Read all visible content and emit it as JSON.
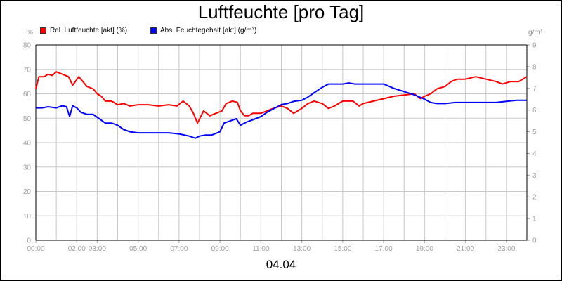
{
  "chart_data": {
    "type": "line",
    "title": "Luftfeuchte [pro Tag]",
    "xlabel": "04.04",
    "x_ticks": [
      "00:00",
      "02:00",
      "03:00",
      "05:00",
      "07:00",
      "09:00",
      "11:00",
      "13:00",
      "15:00",
      "17:00",
      "19:00",
      "21:00",
      "23:00"
    ],
    "x_tick_hours": [
      0,
      2,
      3,
      5,
      7,
      9,
      11,
      13,
      15,
      17,
      19,
      21,
      23
    ],
    "xlim": [
      0,
      24
    ],
    "y_left": {
      "unit": "%",
      "lim": [
        0,
        80
      ],
      "ticks": [
        "0",
        "10",
        "20",
        "30",
        "40",
        "50",
        "60",
        "70",
        "80"
      ]
    },
    "y_right": {
      "unit": "g/m³",
      "lim": [
        0,
        9
      ],
      "ticks": [
        "0",
        "1",
        "2",
        "3",
        "4",
        "5",
        "6",
        "7",
        "8",
        "9"
      ]
    },
    "grid": true,
    "legend_position": "top-left",
    "series": [
      {
        "name": "Rel. Luftfeuchte [akt] (%)",
        "color": "#ff0000",
        "axis": "left",
        "points": [
          [
            0.0,
            62
          ],
          [
            0.15,
            67
          ],
          [
            0.4,
            67
          ],
          [
            0.6,
            68
          ],
          [
            0.8,
            67.5
          ],
          [
            1.0,
            69
          ],
          [
            1.3,
            68
          ],
          [
            1.6,
            67
          ],
          [
            1.8,
            63.5
          ],
          [
            2.1,
            67
          ],
          [
            2.3,
            65
          ],
          [
            2.5,
            63
          ],
          [
            2.8,
            62
          ],
          [
            3.0,
            60
          ],
          [
            3.2,
            59
          ],
          [
            3.4,
            57
          ],
          [
            3.7,
            57
          ],
          [
            4.0,
            55.5
          ],
          [
            4.3,
            56
          ],
          [
            4.6,
            55
          ],
          [
            5.0,
            55.5
          ],
          [
            5.5,
            55.5
          ],
          [
            6.0,
            55
          ],
          [
            6.5,
            55.5
          ],
          [
            6.9,
            55
          ],
          [
            7.2,
            57
          ],
          [
            7.5,
            55
          ],
          [
            7.7,
            52
          ],
          [
            7.9,
            48
          ],
          [
            8.2,
            53
          ],
          [
            8.5,
            51
          ],
          [
            8.8,
            52
          ],
          [
            9.1,
            53
          ],
          [
            9.3,
            56
          ],
          [
            9.6,
            57
          ],
          [
            9.85,
            56.5
          ],
          [
            10.0,
            53
          ],
          [
            10.2,
            51
          ],
          [
            10.4,
            51
          ],
          [
            10.6,
            52
          ],
          [
            11.0,
            52
          ],
          [
            11.3,
            53
          ],
          [
            11.6,
            54
          ],
          [
            12.0,
            55
          ],
          [
            12.3,
            54
          ],
          [
            12.6,
            52
          ],
          [
            13.0,
            54
          ],
          [
            13.3,
            56
          ],
          [
            13.6,
            57
          ],
          [
            14.0,
            56
          ],
          [
            14.3,
            54
          ],
          [
            14.6,
            55
          ],
          [
            15.0,
            57
          ],
          [
            15.5,
            57
          ],
          [
            15.8,
            55
          ],
          [
            16.0,
            56
          ],
          [
            16.5,
            57
          ],
          [
            17.0,
            58
          ],
          [
            17.5,
            59
          ],
          [
            18.0,
            59.5
          ],
          [
            18.5,
            60
          ],
          [
            18.8,
            58
          ],
          [
            19.0,
            59
          ],
          [
            19.3,
            60
          ],
          [
            19.6,
            62
          ],
          [
            20.0,
            63
          ],
          [
            20.3,
            65
          ],
          [
            20.6,
            66
          ],
          [
            21.0,
            66
          ],
          [
            21.5,
            67
          ],
          [
            22.0,
            66
          ],
          [
            22.5,
            65
          ],
          [
            22.8,
            64
          ],
          [
            23.2,
            65
          ],
          [
            23.6,
            65
          ],
          [
            24.0,
            67
          ]
        ]
      },
      {
        "name": "Abs. Feuchtegehalt [akt] (g/m³)",
        "color": "#0000ff",
        "axis": "right",
        "points": [
          [
            0.0,
            6.1
          ],
          [
            0.3,
            6.1
          ],
          [
            0.6,
            6.15
          ],
          [
            1.0,
            6.1
          ],
          [
            1.3,
            6.2
          ],
          [
            1.5,
            6.15
          ],
          [
            1.65,
            5.7
          ],
          [
            1.8,
            6.2
          ],
          [
            2.0,
            6.1
          ],
          [
            2.2,
            5.9
          ],
          [
            2.5,
            5.8
          ],
          [
            2.8,
            5.8
          ],
          [
            3.1,
            5.6
          ],
          [
            3.4,
            5.4
          ],
          [
            3.7,
            5.4
          ],
          [
            4.0,
            5.3
          ],
          [
            4.3,
            5.1
          ],
          [
            4.6,
            5.0
          ],
          [
            5.0,
            4.95
          ],
          [
            5.5,
            4.95
          ],
          [
            6.0,
            4.95
          ],
          [
            6.5,
            4.95
          ],
          [
            7.0,
            4.9
          ],
          [
            7.5,
            4.8
          ],
          [
            7.8,
            4.7
          ],
          [
            8.0,
            4.8
          ],
          [
            8.3,
            4.85
          ],
          [
            8.6,
            4.85
          ],
          [
            9.0,
            5.0
          ],
          [
            9.2,
            5.4
          ],
          [
            9.5,
            5.5
          ],
          [
            9.8,
            5.6
          ],
          [
            10.0,
            5.3
          ],
          [
            10.3,
            5.45
          ],
          [
            10.6,
            5.55
          ],
          [
            11.0,
            5.7
          ],
          [
            11.3,
            5.9
          ],
          [
            11.6,
            6.05
          ],
          [
            12.0,
            6.25
          ],
          [
            12.3,
            6.3
          ],
          [
            12.6,
            6.4
          ],
          [
            13.0,
            6.45
          ],
          [
            13.3,
            6.6
          ],
          [
            13.6,
            6.8
          ],
          [
            14.0,
            7.05
          ],
          [
            14.3,
            7.2
          ],
          [
            14.6,
            7.2
          ],
          [
            15.0,
            7.2
          ],
          [
            15.3,
            7.25
          ],
          [
            15.6,
            7.2
          ],
          [
            16.0,
            7.2
          ],
          [
            16.5,
            7.2
          ],
          [
            17.0,
            7.2
          ],
          [
            17.5,
            7.0
          ],
          [
            18.0,
            6.85
          ],
          [
            18.5,
            6.7
          ],
          [
            19.0,
            6.5
          ],
          [
            19.3,
            6.35
          ],
          [
            19.6,
            6.3
          ],
          [
            20.0,
            6.3
          ],
          [
            20.5,
            6.35
          ],
          [
            21.0,
            6.35
          ],
          [
            21.5,
            6.35
          ],
          [
            22.0,
            6.35
          ],
          [
            22.5,
            6.35
          ],
          [
            23.0,
            6.4
          ],
          [
            23.5,
            6.45
          ],
          [
            24.0,
            6.45
          ]
        ]
      }
    ]
  }
}
